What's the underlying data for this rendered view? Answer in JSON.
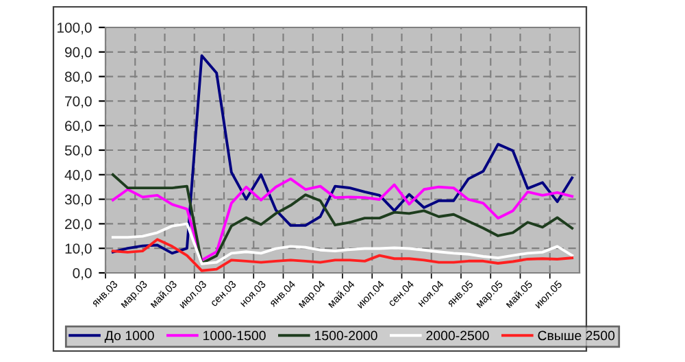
{
  "chart_data": {
    "type": "line",
    "categories": [
      "янв.03",
      null,
      "мар.03",
      null,
      "май.03",
      null,
      "июл.03",
      null,
      "сен.03",
      null,
      "ноя.03",
      null,
      "янв.04",
      null,
      "мар.04",
      null,
      "май.04",
      null,
      "июл.04",
      null,
      "сен.04",
      null,
      "ноя.04",
      null,
      "янв.05",
      null,
      "мар.05",
      null,
      "май.05",
      null,
      "июл.05",
      null
    ],
    "series": [
      {
        "name": "До 1000",
        "color": "#000080",
        "values": [
          8.5,
          10,
          11,
          11.3,
          8,
          10,
          88.5,
          81.4,
          41,
          30,
          40,
          25.6,
          19.3,
          19.3,
          22.9,
          35.3,
          34.6,
          33,
          31.6,
          25.3,
          32,
          26.6,
          29.4,
          29.4,
          38.3,
          41.4,
          52.4,
          49.8,
          34.4,
          36.8,
          29,
          38.7
        ]
      },
      {
        "name": "1000-1500",
        "color": "#ff00ff",
        "values": [
          29.7,
          34,
          30.9,
          31.6,
          27.9,
          26,
          5.2,
          8.6,
          28.4,
          35,
          29.7,
          35,
          38.3,
          34,
          35.3,
          30.7,
          30.9,
          30.7,
          29.9,
          35.9,
          28,
          34,
          35,
          34.6,
          29.9,
          28.4,
          22.3,
          25.3,
          33,
          31.6,
          32.7,
          31.2
        ]
      },
      {
        "name": "1500-2000",
        "color": "#1e3d1e",
        "values": [
          40,
          34.6,
          34.6,
          34.6,
          34.6,
          35.3,
          3.9,
          7,
          19.1,
          22.5,
          19.7,
          24.2,
          27.5,
          31.8,
          29.4,
          19.5,
          20.6,
          22.3,
          22.3,
          24.7,
          24.2,
          25.3,
          22.9,
          23.8,
          21,
          18.2,
          15.1,
          16.4,
          20.6,
          18.6,
          22.5,
          18.2
        ]
      },
      {
        "name": "2000-2500",
        "color": "#ffffff",
        "values": [
          14.5,
          14.5,
          14.9,
          16.4,
          19.1,
          20,
          3.7,
          4.3,
          8,
          8.6,
          8,
          9.9,
          10.8,
          10.4,
          9.3,
          8.9,
          9.5,
          9.9,
          9.9,
          10.2,
          9.9,
          9.3,
          8.6,
          8,
          7.6,
          6.7,
          6.1,
          7.1,
          8,
          8.4,
          10.8,
          7.1
        ]
      },
      {
        "name": "Свыше 2500",
        "color": "#ff2020",
        "values": [
          8.9,
          8.4,
          8.9,
          13.6,
          10.8,
          7.1,
          0.9,
          1.5,
          5.2,
          4.8,
          4.3,
          4.8,
          5.2,
          4.8,
          4.3,
          5.2,
          5.2,
          4.8,
          7.1,
          5.8,
          5.8,
          5.2,
          4.3,
          4.3,
          4.8,
          4.8,
          3.9,
          4.6,
          5.6,
          5.8,
          5.6,
          6.1
        ]
      }
    ],
    "ylim": [
      0,
      100
    ],
    "yticks": [
      {
        "value": 0,
        "label": "0,0"
      },
      {
        "value": 10,
        "label": "10,0"
      },
      {
        "value": 20,
        "label": "20,0"
      },
      {
        "value": 30,
        "label": "30,0"
      },
      {
        "value": 40,
        "label": "40,0"
      },
      {
        "value": 50,
        "label": "50,0"
      },
      {
        "value": 60,
        "label": "60,0"
      },
      {
        "value": 70,
        "label": "70,0"
      },
      {
        "value": 80,
        "label": "80,0"
      },
      {
        "value": 90,
        "label": "90,0"
      },
      {
        "value": 100,
        "label": "100,0"
      }
    ],
    "grid": true,
    "legend": "bottom",
    "marker": "none",
    "line_style": "solid"
  }
}
